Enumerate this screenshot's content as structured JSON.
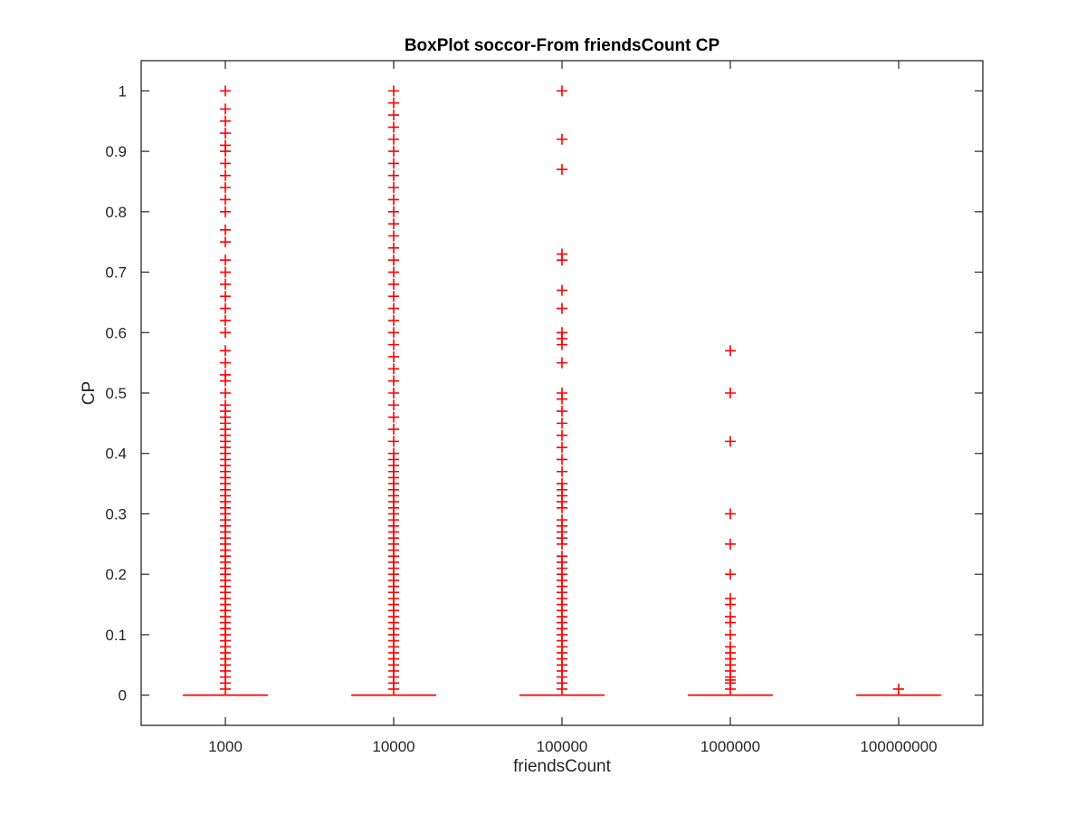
{
  "chart_data": {
    "type": "box",
    "title": "BoxPlot soccor-From friendsCount CP",
    "xlabel": "friendsCount",
    "ylabel": "CP",
    "categories": [
      "1000",
      "10000",
      "100000",
      "1000000",
      "100000000"
    ],
    "ylim": [
      -0.05,
      1.05
    ],
    "yticks": [
      "0",
      "0.1",
      "0.2",
      "0.3",
      "0.4",
      "0.5",
      "0.6",
      "0.7",
      "0.8",
      "0.9",
      "1"
    ],
    "grid": false,
    "legend": "none",
    "color": "#ff0000",
    "groups": [
      {
        "category": "1000",
        "median": 0,
        "q1": 0,
        "q3": 0,
        "whisker_low": 0,
        "whisker_high": 0,
        "outliers": [
          0.01,
          0.02,
          0.03,
          0.04,
          0.05,
          0.06,
          0.07,
          0.08,
          0.09,
          0.1,
          0.11,
          0.12,
          0.13,
          0.14,
          0.15,
          0.16,
          0.17,
          0.18,
          0.19,
          0.2,
          0.21,
          0.22,
          0.23,
          0.24,
          0.25,
          0.26,
          0.27,
          0.28,
          0.29,
          0.3,
          0.31,
          0.32,
          0.33,
          0.34,
          0.35,
          0.36,
          0.37,
          0.38,
          0.39,
          0.4,
          0.41,
          0.42,
          0.43,
          0.44,
          0.45,
          0.46,
          0.47,
          0.48,
          0.5,
          0.52,
          0.53,
          0.55,
          0.57,
          0.6,
          0.62,
          0.64,
          0.66,
          0.68,
          0.7,
          0.72,
          0.75,
          0.77,
          0.8,
          0.82,
          0.84,
          0.86,
          0.88,
          0.9,
          0.91,
          0.93,
          0.95,
          0.97,
          1.0
        ]
      },
      {
        "category": "10000",
        "median": 0,
        "q1": 0,
        "q3": 0,
        "whisker_low": 0,
        "whisker_high": 0,
        "outliers": [
          0.01,
          0.02,
          0.03,
          0.04,
          0.05,
          0.06,
          0.07,
          0.08,
          0.09,
          0.1,
          0.11,
          0.12,
          0.13,
          0.14,
          0.15,
          0.16,
          0.17,
          0.18,
          0.19,
          0.2,
          0.21,
          0.22,
          0.23,
          0.24,
          0.25,
          0.26,
          0.27,
          0.28,
          0.29,
          0.3,
          0.31,
          0.32,
          0.33,
          0.34,
          0.35,
          0.36,
          0.37,
          0.38,
          0.39,
          0.4,
          0.42,
          0.44,
          0.46,
          0.48,
          0.5,
          0.52,
          0.54,
          0.56,
          0.58,
          0.6,
          0.62,
          0.64,
          0.66,
          0.68,
          0.7,
          0.72,
          0.74,
          0.76,
          0.78,
          0.8,
          0.82,
          0.84,
          0.86,
          0.88,
          0.9,
          0.92,
          0.94,
          0.96,
          0.98,
          1.0
        ]
      },
      {
        "category": "100000",
        "median": 0,
        "q1": 0,
        "q3": 0,
        "whisker_low": 0,
        "whisker_high": 0,
        "outliers": [
          0.01,
          0.02,
          0.03,
          0.04,
          0.05,
          0.06,
          0.07,
          0.08,
          0.09,
          0.1,
          0.11,
          0.12,
          0.13,
          0.14,
          0.15,
          0.16,
          0.17,
          0.18,
          0.19,
          0.2,
          0.21,
          0.22,
          0.23,
          0.25,
          0.26,
          0.27,
          0.28,
          0.29,
          0.31,
          0.32,
          0.33,
          0.34,
          0.35,
          0.37,
          0.39,
          0.41,
          0.43,
          0.45,
          0.47,
          0.49,
          0.5,
          0.55,
          0.58,
          0.59,
          0.6,
          0.64,
          0.67,
          0.72,
          0.73,
          0.87,
          0.92,
          1.0
        ]
      },
      {
        "category": "1000000",
        "median": 0,
        "q1": 0,
        "q3": 0,
        "whisker_low": 0,
        "whisker_high": 0,
        "outliers": [
          0.01,
          0.02,
          0.025,
          0.03,
          0.04,
          0.05,
          0.06,
          0.07,
          0.08,
          0.1,
          0.12,
          0.13,
          0.15,
          0.16,
          0.2,
          0.25,
          0.3,
          0.42,
          0.5,
          0.57
        ]
      },
      {
        "category": "100000000",
        "median": 0,
        "q1": 0,
        "q3": 0,
        "whisker_low": 0,
        "whisker_high": 0,
        "outliers": [
          0.01
        ]
      }
    ]
  }
}
